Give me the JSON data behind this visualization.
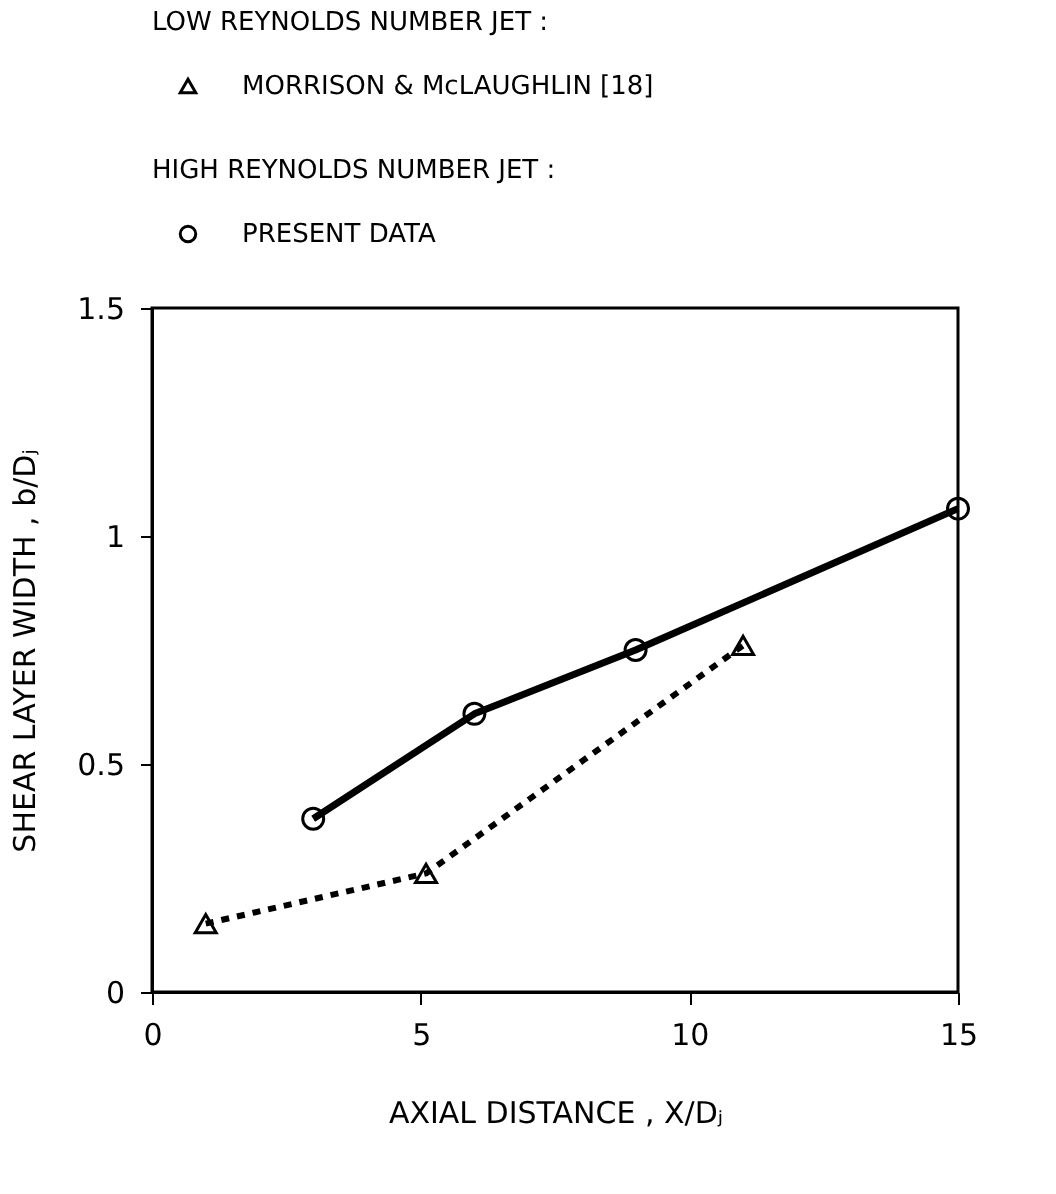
{
  "chart_data": {
    "type": "line",
    "xlabel": "AXIAL DISTANCE , X/Dⱼ",
    "ylabel": "SHEAR LAYER WIDTH , b/Dⱼ",
    "annotations": [
      "LOW REYNOLDS NUMBER JET :",
      "HIGH REYNOLDS NUMBER JET :"
    ],
    "series": [
      {
        "name": "MORRISON & McLAUGHLIN [18]",
        "color": "#000000",
        "marker": "triangle",
        "line_style": "dotted",
        "x": [
          1,
          5.1,
          11
        ],
        "values": [
          0.15,
          0.26,
          0.76
        ]
      },
      {
        "name": "PRESENT DATA",
        "color": "#000000",
        "marker": "circle",
        "line_style": "solid",
        "x": [
          3,
          6,
          9,
          15
        ],
        "values": [
          0.38,
          0.61,
          0.75,
          1.06
        ]
      }
    ],
    "xlim": [
      0,
      15
    ],
    "xticks": [
      0,
      5,
      10,
      15
    ],
    "ylim": [
      0,
      1.5
    ],
    "yticks": [
      0,
      0.5,
      1,
      1.5
    ],
    "grid": false,
    "legend": "top"
  }
}
